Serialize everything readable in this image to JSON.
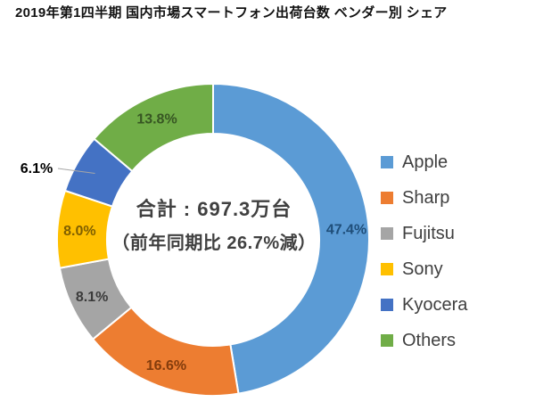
{
  "title": "2019年第1四半期 国内市場スマートフォン出荷台数 ベンダー別 シェア",
  "chart_data": {
    "type": "pie",
    "subtype": "donut",
    "title": "2019年第1四半期 国内市場スマートフォン出荷台数 ベンダー別 シェア",
    "categories": [
      "Apple",
      "Sharp",
      "Fujitsu",
      "Sony",
      "Kyocera",
      "Others"
    ],
    "values": [
      47.4,
      16.6,
      8.1,
      8.0,
      6.1,
      13.8
    ],
    "labels": [
      "47.4%",
      "16.6%",
      "8.1%",
      "8.0%",
      "6.1%",
      "13.8%"
    ],
    "unit": "%",
    "colors": [
      "#5B9BD5",
      "#ED7D31",
      "#A5A5A5",
      "#FFC000",
      "#4472C4",
      "#70AD47"
    ],
    "label_colors": [
      "#1F4E79",
      "#833C0C",
      "#3B3B3B",
      "#7F5F00",
      "#000000",
      "#375623"
    ],
    "start_angle_deg": 0,
    "direction": "clockwise",
    "legend_position": "right",
    "outside_label_category": "Kyocera",
    "center_labels": {
      "line1": "合計 : 697.3万台",
      "line2": "（前年同期比 26.7%減）"
    }
  }
}
